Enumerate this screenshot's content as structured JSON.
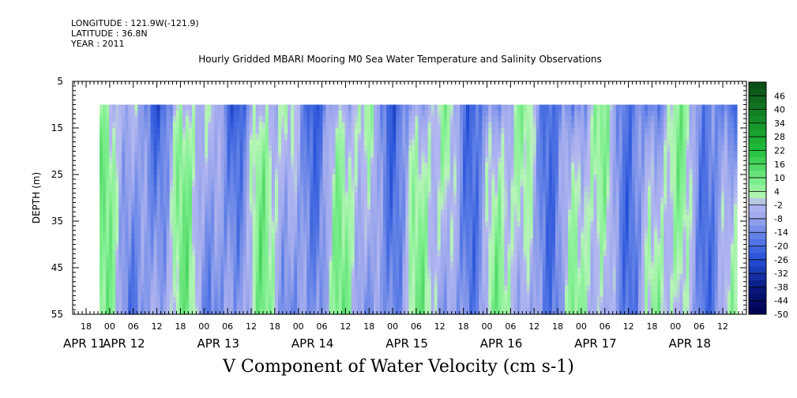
{
  "header": {
    "longitude": "LONGITUDE : 121.9W(-121.9)",
    "latitude": "LATITUDE : 36.8N",
    "year": "YEAR : 2011",
    "title": "Hourly Gridded MBARI Mooring M0 Sea Water Temperature and Salinity Observations"
  },
  "chart_data": {
    "type": "heatmap",
    "title": "Hourly Gridded MBARI Mooring M0 Sea Water Temperature and Salinity Observations",
    "xlabel": "",
    "ylabel": "DEPTH (m)",
    "bottom_label": "V Component of Water Velocity (cm s-1)",
    "y_ticks": [
      "5",
      "15",
      "25",
      "35",
      "45",
      "55"
    ],
    "y_range": [
      5,
      55
    ],
    "y_inverted": true,
    "x_hour_ticks": [
      "18",
      "00",
      "06",
      "12",
      "18",
      "00",
      "06",
      "12",
      "18",
      "00",
      "06",
      "12",
      "18",
      "00",
      "06",
      "12",
      "18",
      "00",
      "06",
      "12",
      "18",
      "00",
      "06",
      "12",
      "18",
      "00",
      "06",
      "12"
    ],
    "x_day_labels": [
      "APR 11",
      "APR 12",
      "APR 13",
      "APR 14",
      "APR 15",
      "APR 16",
      "APR 17",
      "APR 18"
    ],
    "data_depth_range": [
      10,
      55
    ],
    "colorbar": {
      "ticks": [
        "46",
        "40",
        "34",
        "28",
        "22",
        "16",
        "10",
        "4",
        "-2",
        "-8",
        "-14",
        "-20",
        "-26",
        "-32",
        "-38",
        "-44",
        "-50"
      ],
      "range": [
        -50,
        52
      ],
      "step": 3,
      "colors": {
        "dark_green": "#0a4a14",
        "mid_green": "#1fbf3a",
        "light_green": "#7fef8f",
        "pale_green": "#b8f5b8",
        "pale_blue": "#b5b8f0",
        "lavender": "#9aa6ec",
        "mid_blue": "#5f7fe6",
        "blue": "#2550d8",
        "dark_blue": "#0a1a80",
        "navy": "#000050"
      }
    },
    "grid": false,
    "legend_placement": "right"
  }
}
